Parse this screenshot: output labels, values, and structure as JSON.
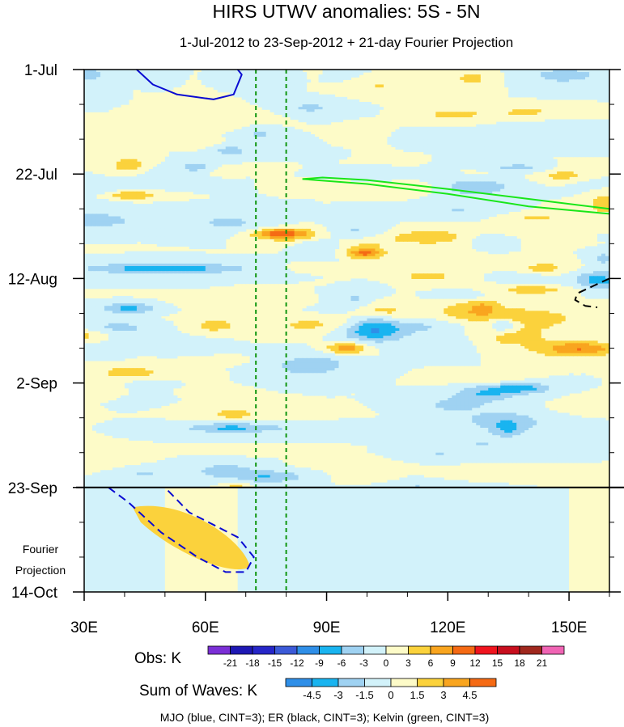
{
  "chart_data": {
    "type": "heatmap",
    "title": "HIRS UTWV anomalies: 5S - 5N",
    "subtitle": "1-Jul-2012 to 23-Sep-2012 + 21-day Fourier Projection",
    "x_axis": {
      "range": [
        30,
        160
      ],
      "ticks": [
        {
          "value": 30,
          "label": "30E"
        },
        {
          "value": 60,
          "label": "60E"
        },
        {
          "value": 90,
          "label": "90E"
        },
        {
          "value": 120,
          "label": "120E"
        },
        {
          "value": 150,
          "label": "150E"
        }
      ],
      "minor_step": 10
    },
    "y_axis": {
      "range_days": [
        0,
        105
      ],
      "ticks": [
        {
          "day": 0,
          "label": "1-Jul"
        },
        {
          "day": 21,
          "label": "22-Jul"
        },
        {
          "day": 42,
          "label": "12-Aug"
        },
        {
          "day": 63,
          "label": "2-Sep"
        },
        {
          "day": 84,
          "label": "23-Sep"
        },
        {
          "day": 105,
          "label": "14-Oct"
        }
      ],
      "minor_step_days": 7,
      "projection_label": [
        "Fourier",
        "Projection"
      ]
    },
    "observation_end_day": 84,
    "reference_lines_lon": [
      72.5,
      80
    ],
    "obs_colorbar": {
      "title": "Obs: K",
      "levels": [
        "-21",
        "-18",
        "-15",
        "-12",
        "-9",
        "-6",
        "-3",
        "0",
        "3",
        "6",
        "9",
        "12",
        "15",
        "18",
        "21"
      ],
      "colors": [
        "#7b2fd6",
        "#1e18b4",
        "#2626c8",
        "#3c5ad8",
        "#2f8fe8",
        "#19b4f0",
        "#9fd2f2",
        "#d2f2fa",
        "#fdfbc8",
        "#fbd23c",
        "#f9a51f",
        "#f56a14",
        "#f0141e",
        "#c80f1e",
        "#a0281e",
        "#f064b4"
      ]
    },
    "wave_colorbar": {
      "title": "Sum of Waves: K",
      "levels": [
        "-4.5",
        "-3",
        "-1.5",
        "0",
        "1.5",
        "3",
        "4.5"
      ],
      "colors": [
        "#2f8fe8",
        "#19b4f0",
        "#9fd2f2",
        "#d2f2fa",
        "#fdfbc8",
        "#fbd23c",
        "#f9a51f",
        "#f56a14"
      ]
    },
    "footnote": "MJO (blue, CINT=3); ER (black, CINT=3); Kelvin (green, CINT=3)",
    "wave_contours": [
      {
        "wave": "MJO",
        "color": "#0a0ad2",
        "style": "solid",
        "points": [
          [
            43,
            0
          ],
          [
            47,
            3
          ],
          [
            53,
            5
          ],
          [
            62,
            6
          ],
          [
            67,
            5
          ],
          [
            69,
            1
          ],
          [
            68,
            0
          ]
        ]
      },
      {
        "wave": "MJO",
        "color": "#0a0ad2",
        "style": "dashed",
        "points": [
          [
            36,
            84
          ],
          [
            41,
            87
          ],
          [
            49,
            93
          ],
          [
            58,
            98
          ],
          [
            65,
            101
          ],
          [
            70,
            101
          ],
          [
            72,
            98
          ],
          [
            68,
            94
          ],
          [
            56,
            89
          ],
          [
            50,
            84
          ]
        ]
      },
      {
        "wave": "Kelvin",
        "color": "#19e619",
        "style": "solid",
        "points": [
          [
            84,
            22
          ],
          [
            100,
            23
          ],
          [
            120,
            25
          ],
          [
            140,
            27.5
          ],
          [
            160,
            29
          ],
          [
            160,
            28
          ],
          [
            140,
            26
          ],
          [
            120,
            24
          ],
          [
            100,
            22.2
          ],
          [
            89,
            21.7
          ],
          [
            84,
            22
          ]
        ]
      },
      {
        "wave": "ER",
        "color": "#000000",
        "style": "dashed",
        "points": [
          [
            160,
            42
          ],
          [
            156,
            43.5
          ],
          [
            152,
            45
          ],
          [
            151.5,
            46.3
          ],
          [
            154,
            47.5
          ],
          [
            157,
            47.8
          ]
        ]
      }
    ]
  }
}
